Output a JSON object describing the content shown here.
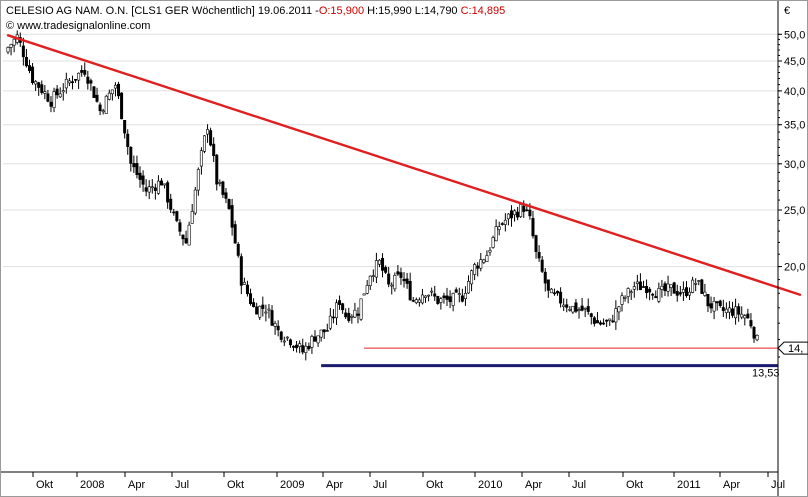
{
  "header": {
    "title": "CELESIO AG NAM. O.N. [CLS1 GER  Wöchentlich] 19.06.2011 -",
    "open": "O:15,900",
    "high": "H:15,990",
    "low": "L:14,790",
    "close": "C:14,895",
    "source": "© www.tradesignalonline.com",
    "currency": "€"
  },
  "chart_data": {
    "type": "candlestick",
    "y_scale": "log",
    "ylim": [
      12.9,
      55
    ],
    "y_ticks": [
      {
        "value": 50,
        "label": "50,0"
      },
      {
        "value": 45,
        "label": "45,0"
      },
      {
        "value": 40,
        "label": "40,0"
      },
      {
        "value": 35,
        "label": "35,0"
      },
      {
        "value": 30,
        "label": "30,0"
      },
      {
        "value": 25,
        "label": "25,0"
      },
      {
        "value": 20,
        "label": "20,0"
      }
    ],
    "x_ticks": [
      {
        "label": "Okt",
        "major": false
      },
      {
        "label": "2008",
        "major": true
      },
      {
        "label": "Apr",
        "major": false
      },
      {
        "label": "Jul",
        "major": false
      },
      {
        "label": "Okt",
        "major": false
      },
      {
        "label": "2009",
        "major": true
      },
      {
        "label": "Apr",
        "major": false
      },
      {
        "label": "Jul",
        "major": false
      },
      {
        "label": "Okt",
        "major": false
      },
      {
        "label": "2010",
        "major": true
      },
      {
        "label": "Apr",
        "major": false
      },
      {
        "label": "Jul",
        "major": false
      },
      {
        "label": "Okt",
        "major": false
      },
      {
        "label": "2011",
        "major": true
      },
      {
        "label": "Apr",
        "major": false
      },
      {
        "label": "Jul",
        "major": false
      }
    ],
    "anchors": [
      [
        0,
        47.5
      ],
      [
        3,
        49.5
      ],
      [
        8,
        42
      ],
      [
        14,
        38.5
      ],
      [
        20,
        41.5
      ],
      [
        25,
        43.5
      ],
      [
        30,
        37
      ],
      [
        35,
        41
      ],
      [
        40,
        30
      ],
      [
        45,
        27
      ],
      [
        50,
        28
      ],
      [
        55,
        23.5
      ],
      [
        58,
        22
      ],
      [
        61,
        27
      ],
      [
        65,
        35
      ],
      [
        68,
        28
      ],
      [
        72,
        25
      ],
      [
        76,
        19
      ],
      [
        80,
        17
      ],
      [
        84,
        17
      ],
      [
        88,
        15.5
      ],
      [
        92,
        15
      ],
      [
        96,
        14.3
      ],
      [
        100,
        15.2
      ],
      [
        104,
        15.6
      ],
      [
        108,
        17.5
      ],
      [
        110,
        16.5
      ],
      [
        114,
        16.8
      ],
      [
        118,
        19.5
      ],
      [
        121,
        20.3
      ],
      [
        124,
        18.5
      ],
      [
        128,
        19.3
      ],
      [
        132,
        17.5
      ],
      [
        136,
        18.2
      ],
      [
        140,
        17.5
      ],
      [
        144,
        17.5
      ],
      [
        148,
        17.8
      ],
      [
        152,
        20
      ],
      [
        156,
        21
      ],
      [
        160,
        23.5
      ],
      [
        164,
        24.5
      ],
      [
        168,
        25.3
      ],
      [
        170,
        24
      ],
      [
        172,
        21
      ],
      [
        176,
        18
      ],
      [
        180,
        17.5
      ],
      [
        184,
        17
      ],
      [
        188,
        16.8
      ],
      [
        192,
        16
      ],
      [
        196,
        16
      ],
      [
        200,
        17.5
      ],
      [
        204,
        18.5
      ],
      [
        208,
        18.5
      ],
      [
        212,
        18
      ],
      [
        216,
        18.3
      ],
      [
        220,
        18
      ],
      [
        224,
        18.8
      ],
      [
        226,
        18.3
      ],
      [
        228,
        17.3
      ],
      [
        232,
        16.8
      ],
      [
        236,
        16.8
      ],
      [
        240,
        16.5
      ],
      [
        242,
        16
      ],
      [
        244,
        14.9
      ]
    ],
    "lines": [
      {
        "name": "resistance-trendline",
        "color": "#e02020",
        "from": {
          "week": 0,
          "value": 49.8
        },
        "to": {
          "week": 258,
          "value": 17.9
        }
      },
      {
        "name": "support-line-red",
        "value": 14.5,
        "from_week": 116,
        "color": "#e02020",
        "label": "14,"
      },
      {
        "name": "support-line-blue",
        "value": 13.53,
        "from_week": 102,
        "color": "#1c1c6e",
        "label": "13,53"
      }
    ],
    "colors": {
      "up": "#ffffff",
      "down": "#000000",
      "wick": "#000000",
      "trendline": "#e02020",
      "support_red": "#e02020",
      "support_blue": "#1c1c6e",
      "grid": "#e0e0e0"
    }
  }
}
